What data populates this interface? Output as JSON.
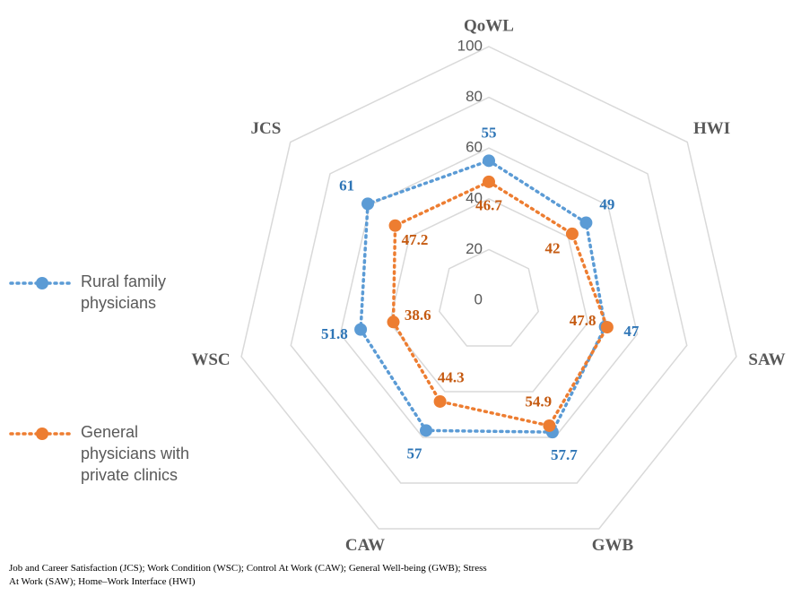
{
  "chart_data": {
    "type": "radar",
    "categories": [
      "QoWL",
      "HWI",
      "SAW",
      "GWB",
      "CAW",
      "WSC",
      "JCS"
    ],
    "series": [
      {
        "name": "Rural family physicians",
        "color": "#5b9bd5",
        "values": [
          55,
          49,
          47,
          57.7,
          57,
          51.8,
          61
        ]
      },
      {
        "name": "General physicians with private clinics",
        "color": "#ed7d31",
        "values": [
          46.7,
          42,
          47.8,
          54.9,
          44.3,
          38.6,
          47.2
        ]
      }
    ],
    "ylim": [
      0,
      100
    ],
    "yticks": [
      0,
      20,
      40,
      60,
      80,
      100
    ],
    "grid": true,
    "legend": "left",
    "footnote": "Job and Career Satisfaction (JCS); Work Condition (WSC); Control At Work (CAW); General Well-being (GWB); Stress At Work (SAW); Home–Work Interface (HWI)"
  }
}
